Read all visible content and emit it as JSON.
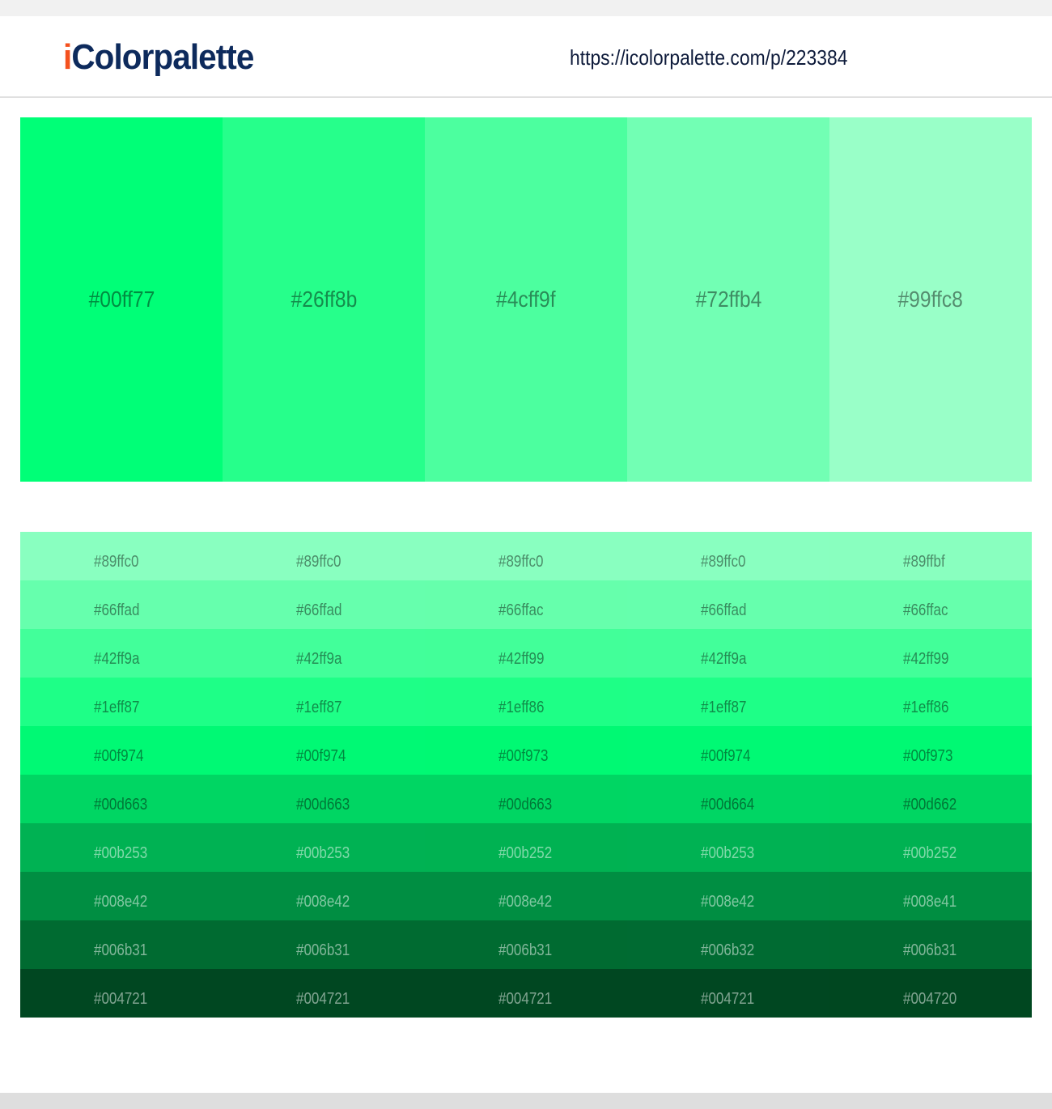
{
  "header": {
    "logo_i": "i",
    "logo_rest": "Colorpalette",
    "url": "https://icolorpalette.com/p/223384"
  },
  "palette": [
    "#00ff77",
    "#26ff8b",
    "#4cff9f",
    "#72ffb4",
    "#99ffc8"
  ],
  "shades": [
    [
      "#89ffc0",
      "#89ffc0",
      "#89ffc0",
      "#89ffc0",
      "#89ffbf"
    ],
    [
      "#66ffad",
      "#66ffad",
      "#66ffac",
      "#66ffad",
      "#66ffac"
    ],
    [
      "#42ff9a",
      "#42ff9a",
      "#42ff99",
      "#42ff9a",
      "#42ff99"
    ],
    [
      "#1eff87",
      "#1eff87",
      "#1eff86",
      "#1eff87",
      "#1eff86"
    ],
    [
      "#00f974",
      "#00f974",
      "#00f973",
      "#00f974",
      "#00f973"
    ],
    [
      "#00d663",
      "#00d663",
      "#00d663",
      "#00d664",
      "#00d662"
    ],
    [
      "#00b253",
      "#00b253",
      "#00b252",
      "#00b253",
      "#00b252"
    ],
    [
      "#008e42",
      "#008e42",
      "#008e42",
      "#008e42",
      "#008e41"
    ],
    [
      "#006b31",
      "#006b31",
      "#006b31",
      "#006b32",
      "#006b31"
    ],
    [
      "#004721",
      "#004721",
      "#004721",
      "#004721",
      "#004720"
    ]
  ],
  "colors": {
    "logo_accent": "#f4511e",
    "logo_text": "#0d2a5c"
  }
}
